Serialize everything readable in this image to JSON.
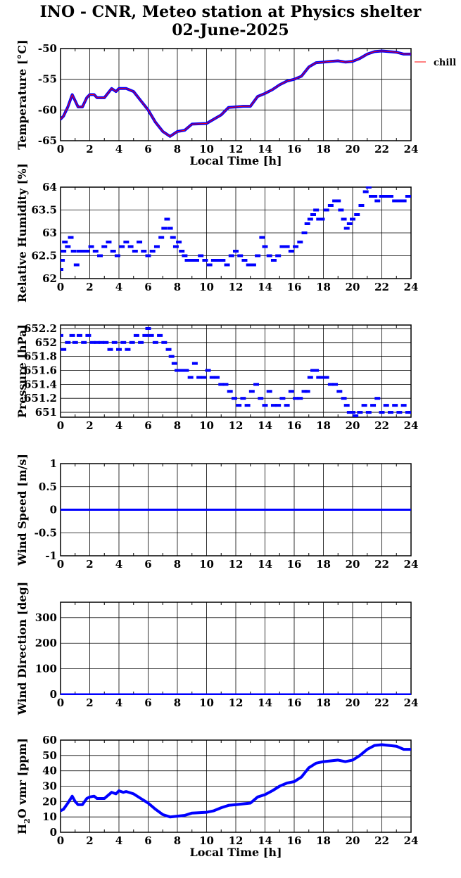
{
  "title_line1": "INO - CNR, Meteo station at Physics shelter",
  "title_line2": "02-June-2025",
  "colors": {
    "data": "#0000ff",
    "chill": "#ff0000",
    "grid": "#000000"
  },
  "chart_data": [
    {
      "id": "temperature",
      "type": "line",
      "ylabel": "Temperature [°C]",
      "xlabel": "Local Time [h]",
      "xlim": [
        0,
        24
      ],
      "xticks": [
        0,
        2,
        4,
        6,
        8,
        10,
        12,
        14,
        16,
        18,
        20,
        22,
        24
      ],
      "ylim": [
        -65,
        -50
      ],
      "yticks": [
        -65,
        -60,
        -55,
        -50
      ],
      "legend": {
        "label": "chill",
        "placement": "top-right-outside"
      },
      "series": [
        {
          "name": "",
          "color": "#0000ff",
          "x": [
            0,
            0.2,
            0.5,
            0.8,
            1.0,
            1.2,
            1.5,
            1.8,
            2.0,
            2.3,
            2.5,
            3.0,
            3.5,
            3.8,
            4.0,
            4.3,
            4.5,
            5.0,
            5.5,
            6.0,
            6.5,
            7.0,
            7.5,
            8.0,
            8.5,
            9.0,
            10.0,
            10.5,
            11.0,
            11.5,
            12.0,
            12.5,
            13.0,
            13.5,
            14.0,
            14.5,
            15.0,
            15.5,
            16.0,
            16.5,
            17.0,
            17.5,
            18.0,
            18.5,
            19.0,
            19.5,
            20.0,
            20.5,
            21.0,
            21.5,
            22.0,
            22.5,
            23.0,
            23.5,
            24.0
          ],
          "y": [
            -61.5,
            -61.0,
            -59.5,
            -57.5,
            -58.5,
            -59.5,
            -59.5,
            -58.0,
            -57.5,
            -57.5,
            -58.0,
            -58.0,
            -56.5,
            -57.0,
            -56.5,
            -56.5,
            -56.5,
            -57.0,
            -58.5,
            -60.0,
            -62.0,
            -63.5,
            -64.3,
            -63.5,
            -63.3,
            -62.3,
            -62.2,
            -61.5,
            -60.8,
            -59.6,
            -59.5,
            -59.4,
            -59.4,
            -57.8,
            -57.3,
            -56.7,
            -55.9,
            -55.3,
            -55.0,
            -54.5,
            -53.0,
            -52.3,
            -52.2,
            -52.1,
            -52.0,
            -52.2,
            -52.1,
            -51.6,
            -50.9,
            -50.5,
            -50.4,
            -50.5,
            -50.6,
            -50.9,
            -50.9
          ]
        }
      ]
    },
    {
      "id": "humidity",
      "type": "scatter",
      "ylabel": "Relative Humidity [%]",
      "xlabel": "",
      "xlim": [
        0,
        24
      ],
      "xticks": [
        0,
        2,
        4,
        6,
        8,
        10,
        12,
        14,
        16,
        18,
        20,
        22,
        24
      ],
      "ylim": [
        62,
        64
      ],
      "yticks": [
        62,
        62.5,
        63,
        63.5,
        64
      ],
      "ytick_labels": [
        "62",
        "62.5",
        "63",
        "63.5",
        "64"
      ],
      "series": [
        {
          "name": "",
          "color": "#0000ff",
          "x": [
            0,
            0.1,
            0.2,
            0.3,
            0.5,
            0.7,
            0.9,
            1.1,
            1.3,
            1.5,
            1.8,
            2.1,
            2.4,
            2.7,
            3.0,
            3.3,
            3.6,
            3.9,
            4.2,
            4.5,
            4.8,
            5.1,
            5.4,
            5.7,
            6.0,
            6.3,
            6.6,
            6.9,
            7.1,
            7.3,
            7.5,
            7.7,
            7.9,
            8.1,
            8.3,
            8.5,
            8.7,
            9.0,
            9.3,
            9.6,
            9.9,
            10.2,
            10.5,
            10.8,
            11.1,
            11.4,
            11.7,
            12.0,
            12.3,
            12.6,
            12.9,
            13.2,
            13.5,
            13.8,
            14.0,
            14.3,
            14.6,
            14.9,
            15.2,
            15.5,
            15.8,
            16.1,
            16.4,
            16.7,
            16.9,
            17.1,
            17.3,
            17.5,
            17.7,
            17.9,
            18.2,
            18.5,
            18.8,
            19.0,
            19.2,
            19.4,
            19.6,
            19.8,
            20.0,
            20.3,
            20.6,
            20.9,
            21.1,
            21.3,
            21.5,
            21.7,
            22.0,
            22.3,
            22.6,
            22.9,
            23.2,
            23.5,
            23.8,
            24.0
          ],
          "y": [
            62.2,
            62.4,
            62.6,
            62.8,
            62.7,
            62.9,
            62.6,
            62.3,
            62.6,
            62.6,
            62.6,
            62.7,
            62.6,
            62.5,
            62.7,
            62.8,
            62.6,
            62.5,
            62.7,
            62.8,
            62.7,
            62.6,
            62.8,
            62.6,
            62.5,
            62.6,
            62.7,
            62.9,
            63.1,
            63.3,
            63.1,
            62.9,
            62.7,
            62.8,
            62.6,
            62.5,
            62.4,
            62.4,
            62.4,
            62.5,
            62.4,
            62.3,
            62.4,
            62.4,
            62.4,
            62.3,
            62.5,
            62.6,
            62.5,
            62.4,
            62.3,
            62.3,
            62.5,
            62.9,
            62.7,
            62.5,
            62.4,
            62.5,
            62.7,
            62.7,
            62.6,
            62.7,
            62.8,
            63.0,
            63.2,
            63.3,
            63.4,
            63.5,
            63.3,
            63.3,
            63.5,
            63.6,
            63.7,
            63.7,
            63.5,
            63.3,
            63.1,
            63.2,
            63.3,
            63.4,
            63.6,
            63.9,
            64.0,
            63.8,
            63.8,
            63.7,
            63.8,
            63.8,
            63.8,
            63.7,
            63.7,
            63.7,
            63.8,
            63.8
          ]
        }
      ]
    },
    {
      "id": "pressure",
      "type": "scatter",
      "ylabel": "Pressure [hPa]",
      "xlabel": "",
      "xlim": [
        0,
        24
      ],
      "xticks": [
        0,
        2,
        4,
        6,
        8,
        10,
        12,
        14,
        16,
        18,
        20,
        22,
        24
      ],
      "ylim": [
        650.93,
        652.25
      ],
      "yticks": [
        651,
        651.2,
        651.4,
        651.6,
        651.8,
        652,
        652.2
      ],
      "ytick_labels": [
        "651",
        "651.2",
        "651.4",
        "651.6",
        "651.8",
        "652",
        "652.2"
      ],
      "series": [
        {
          "name": "",
          "color": "#0000ff",
          "x": [
            0,
            0.2,
            0.5,
            0.8,
            1.0,
            1.3,
            1.6,
            1.9,
            2.2,
            2.5,
            2.8,
            3.1,
            3.4,
            3.7,
            4.0,
            4.3,
            4.6,
            4.9,
            5.2,
            5.5,
            5.8,
            6.0,
            6.2,
            6.5,
            6.8,
            7.1,
            7.4,
            7.6,
            7.8,
            8.0,
            8.3,
            8.6,
            8.9,
            9.2,
            9.5,
            9.8,
            10.1,
            10.4,
            10.7,
            11.0,
            11.3,
            11.6,
            11.9,
            12.2,
            12.5,
            12.8,
            13.1,
            13.4,
            13.7,
            14.0,
            14.3,
            14.6,
            14.9,
            15.2,
            15.5,
            15.8,
            16.1,
            16.4,
            16.7,
            16.9,
            17.1,
            17.3,
            17.5,
            17.7,
            17.9,
            18.2,
            18.5,
            18.8,
            19.1,
            19.4,
            19.6,
            19.8,
            20.0,
            20.2,
            20.5,
            20.8,
            21.1,
            21.4,
            21.7,
            22.0,
            22.3,
            22.6,
            22.9,
            23.2,
            23.5,
            23.8,
            24.0
          ],
          "y": [
            652.1,
            651.9,
            652.0,
            652.1,
            652.0,
            652.1,
            652.0,
            652.1,
            652.0,
            652.0,
            652.0,
            652.0,
            651.9,
            652.0,
            651.9,
            652.0,
            651.9,
            652.0,
            652.1,
            652.0,
            652.1,
            652.2,
            652.1,
            652.0,
            652.1,
            652.0,
            651.9,
            651.8,
            651.7,
            651.6,
            651.6,
            651.6,
            651.5,
            651.7,
            651.5,
            651.5,
            651.6,
            651.5,
            651.5,
            651.4,
            651.4,
            651.3,
            651.2,
            651.1,
            651.2,
            651.1,
            651.3,
            651.4,
            651.2,
            651.1,
            651.3,
            651.1,
            651.1,
            651.2,
            651.1,
            651.3,
            651.2,
            651.2,
            651.3,
            651.3,
            651.5,
            651.6,
            651.6,
            651.5,
            651.5,
            651.5,
            651.4,
            651.4,
            651.3,
            651.2,
            651.1,
            651.0,
            651.0,
            650.95,
            651.0,
            651.1,
            651.0,
            651.1,
            651.2,
            651.0,
            651.1,
            651.0,
            651.1,
            651.0,
            651.1,
            651.0,
            651.0
          ]
        }
      ]
    },
    {
      "id": "windspeed",
      "type": "line",
      "ylabel": "Wind Speed [m/s]",
      "xlabel": "",
      "xlim": [
        0,
        24
      ],
      "xticks": [
        0,
        2,
        4,
        6,
        8,
        10,
        12,
        14,
        16,
        18,
        20,
        22,
        24
      ],
      "ylim": [
        -1,
        1
      ],
      "yticks": [
        -1,
        -0.5,
        0,
        0.5,
        1
      ],
      "ytick_labels": [
        "-1",
        "-0.5",
        "0",
        "0.5",
        "1"
      ],
      "series": [
        {
          "name": "",
          "color": "#0000ff",
          "x": [
            0,
            24
          ],
          "y": [
            0,
            0
          ]
        }
      ]
    },
    {
      "id": "winddir",
      "type": "line",
      "ylabel": "Wind Direction [deg]",
      "xlabel": "",
      "xlim": [
        0,
        24
      ],
      "xticks": [
        0,
        2,
        4,
        6,
        8,
        10,
        12,
        14,
        16,
        18,
        20,
        22,
        24
      ],
      "ylim": [
        0,
        360
      ],
      "yticks": [
        0,
        100,
        200,
        300
      ],
      "ytick_labels": [
        "0",
        "100",
        "200",
        "300"
      ],
      "series": [
        {
          "name": "",
          "color": "#0000ff",
          "x": [
            0,
            24
          ],
          "y": [
            0,
            0
          ]
        }
      ]
    },
    {
      "id": "h2o",
      "type": "line",
      "ylabel": "H2O vmr [ppm]",
      "xlabel": "Local Time [h]",
      "xlim": [
        0,
        24
      ],
      "xticks": [
        0,
        2,
        4,
        6,
        8,
        10,
        12,
        14,
        16,
        18,
        20,
        22,
        24
      ],
      "ylim": [
        0,
        60
      ],
      "yticks": [
        0,
        10,
        20,
        30,
        40,
        50,
        60
      ],
      "series": [
        {
          "name": "",
          "color": "#0000ff",
          "x": [
            0,
            0.2,
            0.5,
            0.8,
            1.0,
            1.2,
            1.5,
            1.8,
            2.0,
            2.3,
            2.5,
            3.0,
            3.5,
            3.8,
            4.0,
            4.3,
            4.5,
            5.0,
            5.5,
            6.0,
            6.5,
            7.0,
            7.5,
            8.0,
            8.5,
            9.0,
            10.0,
            10.5,
            11.0,
            11.5,
            12.0,
            12.5,
            13.0,
            13.5,
            14.0,
            14.5,
            15.0,
            15.5,
            16.0,
            16.5,
            17.0,
            17.5,
            18.0,
            18.5,
            19.0,
            19.5,
            20.0,
            20.5,
            21.0,
            21.5,
            22.0,
            22.5,
            23.0,
            23.5,
            24.0
          ],
          "y": [
            14,
            15,
            19,
            23.5,
            20,
            18,
            18,
            22,
            23,
            23.5,
            22,
            22,
            26,
            25,
            27,
            26,
            26.5,
            25,
            22,
            19,
            15,
            11.5,
            10,
            10.5,
            11,
            12.5,
            13,
            14,
            16,
            17.5,
            18,
            18.5,
            19,
            23,
            24.5,
            27,
            30,
            32,
            33,
            36,
            42,
            45,
            46,
            46.5,
            47,
            46,
            47,
            50,
            54,
            56.5,
            57,
            56.5,
            56,
            54,
            54
          ]
        }
      ]
    }
  ]
}
